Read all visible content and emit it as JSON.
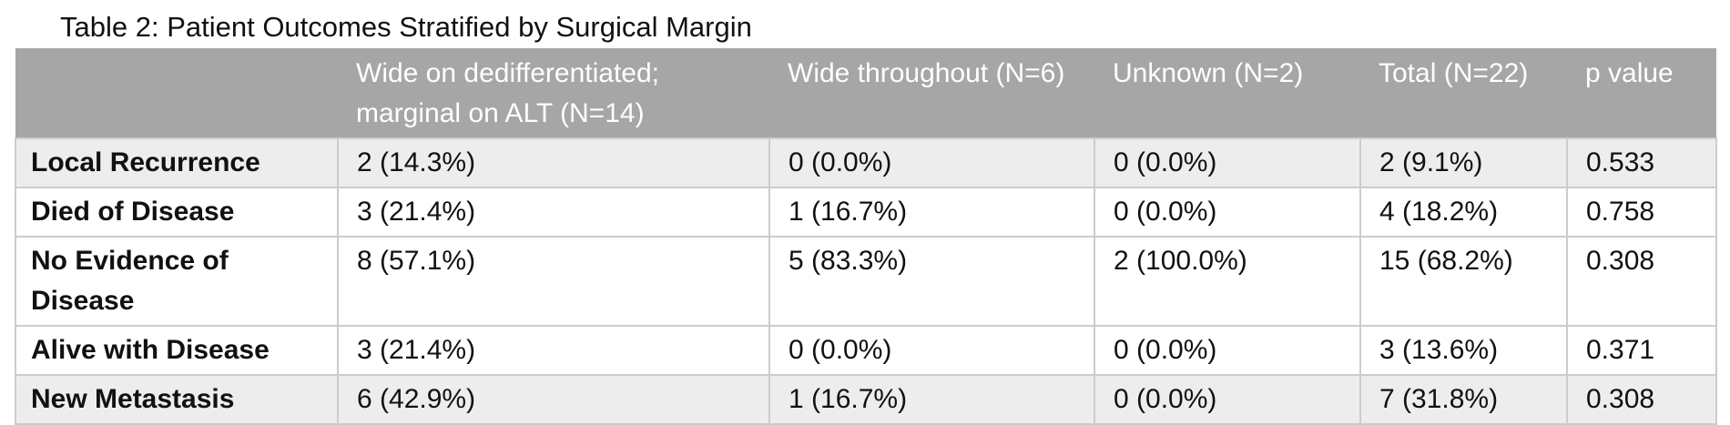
{
  "caption": "Table 2: Patient Outcomes Stratified by Surgical Margin",
  "colors": {
    "header_bg": "#a6a6a6",
    "header_text": "#ffffff",
    "row_shade": "#ededed",
    "border": "#cccccc"
  },
  "headers": [
    "",
    "Wide on dedifferentiated; marginal on ALT (N=14)",
    "Wide throughout (N=6)",
    "Unknown (N=2)",
    "Total (N=22)",
    "p value"
  ],
  "rows": [
    {
      "label": "Local Recurrence",
      "cells": [
        "2 (14.3%)",
        "0 (0.0%)",
        "0 (0.0%)",
        "2 (9.1%)",
        "0.533"
      ]
    },
    {
      "label": "Died of Disease",
      "cells": [
        "3 (21.4%)",
        "1 (16.7%)",
        "0 (0.0%)",
        "4 (18.2%)",
        "0.758"
      ]
    },
    {
      "label": "No Evidence of Disease",
      "cells": [
        "8 (57.1%)",
        "5 (83.3%)",
        "2 (100.0%)",
        "15 (68.2%)",
        "0.308"
      ]
    },
    {
      "label": "Alive with Disease",
      "cells": [
        "3 (21.4%)",
        "0 (0.0%)",
        "0 (0.0%)",
        "3 (13.6%)",
        "0.371"
      ]
    },
    {
      "label": "New Metastasis",
      "cells": [
        "6 (42.9%)",
        "1 (16.7%)",
        "0 (0.0%)",
        "7 (31.8%)",
        "0.308"
      ]
    }
  ]
}
